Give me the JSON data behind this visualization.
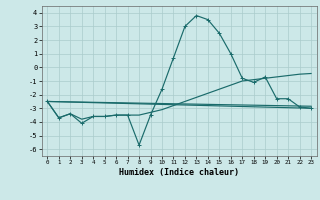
{
  "xlabel": "Humidex (Indice chaleur)",
  "background_color": "#cce8e8",
  "grid_color": "#aacccc",
  "line_color": "#1a6b6b",
  "xlim": [
    -0.5,
    23.5
  ],
  "ylim": [
    -6.5,
    4.5
  ],
  "yticks": [
    -6,
    -5,
    -4,
    -3,
    -2,
    -1,
    0,
    1,
    2,
    3,
    4
  ],
  "xticks": [
    0,
    1,
    2,
    3,
    4,
    5,
    6,
    7,
    8,
    9,
    10,
    11,
    12,
    13,
    14,
    15,
    16,
    17,
    18,
    19,
    20,
    21,
    22,
    23
  ],
  "line1_x": [
    0,
    1,
    2,
    3,
    4,
    5,
    6,
    7,
    8,
    9,
    10,
    11,
    12,
    13,
    14,
    15,
    16,
    17,
    18,
    19,
    20,
    21,
    22,
    23
  ],
  "line1_y": [
    -2.5,
    -3.7,
    -3.4,
    -4.1,
    -3.6,
    -3.6,
    -3.5,
    -3.5,
    -5.7,
    -3.5,
    -1.6,
    0.7,
    3.0,
    3.8,
    3.5,
    2.5,
    1.0,
    -0.8,
    -1.1,
    -0.7,
    -2.3,
    -2.3,
    -2.9,
    -3.0
  ],
  "line2_x": [
    0,
    1,
    2,
    3,
    4,
    5,
    6,
    7,
    8,
    9,
    10,
    11,
    12,
    13,
    14,
    15,
    16,
    17,
    18,
    19,
    20,
    21,
    22,
    23
  ],
  "line2_y": [
    -2.5,
    -3.7,
    -3.4,
    -3.8,
    -3.6,
    -3.6,
    -3.5,
    -3.5,
    -3.5,
    -3.3,
    -3.1,
    -2.8,
    -2.5,
    -2.2,
    -1.9,
    -1.6,
    -1.3,
    -1.0,
    -0.9,
    -0.8,
    -0.7,
    -0.6,
    -0.5,
    -0.45
  ],
  "line3_x": [
    0,
    23
  ],
  "line3_y": [
    -2.5,
    -3.0
  ],
  "line4_x": [
    0,
    23
  ],
  "line4_y": [
    -2.5,
    -2.85
  ]
}
